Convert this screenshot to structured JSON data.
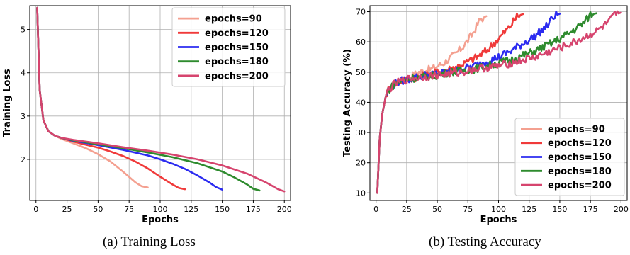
{
  "chart_data": [
    {
      "type": "line",
      "caption": "(a) Training Loss",
      "xlabel": "Epochs",
      "ylabel": "Training Loss",
      "xlim": [
        -5,
        205
      ],
      "ylim": [
        1.05,
        5.55
      ],
      "xticks": [
        0,
        25,
        50,
        75,
        100,
        125,
        150,
        175,
        200
      ],
      "yticks": [
        2,
        3,
        4,
        5
      ],
      "grid": true,
      "legend_position": "top-right",
      "series": [
        {
          "name": "epochs=90",
          "color": "#f4a090",
          "x": [
            1,
            3,
            6,
            10,
            15,
            20,
            30,
            40,
            50,
            60,
            70,
            80,
            85,
            90
          ],
          "y": [
            5.5,
            3.6,
            2.9,
            2.65,
            2.55,
            2.48,
            2.37,
            2.26,
            2.12,
            1.95,
            1.72,
            1.47,
            1.38,
            1.35
          ]
        },
        {
          "name": "epochs=120",
          "color": "#f03a3a",
          "x": [
            1,
            3,
            6,
            10,
            15,
            20,
            30,
            40,
            50,
            60,
            70,
            80,
            90,
            100,
            110,
            115,
            120
          ],
          "y": [
            5.5,
            3.6,
            2.9,
            2.65,
            2.55,
            2.5,
            2.41,
            2.34,
            2.27,
            2.18,
            2.08,
            1.95,
            1.79,
            1.6,
            1.42,
            1.34,
            1.31
          ]
        },
        {
          "name": "epochs=150",
          "color": "#2b2bf0",
          "x": [
            1,
            3,
            6,
            10,
            15,
            20,
            30,
            50,
            70,
            90,
            100,
            110,
            120,
            130,
            140,
            145,
            150
          ],
          "y": [
            5.5,
            3.6,
            2.9,
            2.65,
            2.55,
            2.5,
            2.43,
            2.33,
            2.22,
            2.09,
            2.0,
            1.9,
            1.78,
            1.63,
            1.46,
            1.36,
            1.3
          ]
        },
        {
          "name": "epochs=180",
          "color": "#2e8b2e",
          "x": [
            1,
            3,
            6,
            10,
            15,
            20,
            30,
            50,
            70,
            90,
            110,
            130,
            150,
            160,
            170,
            175,
            180
          ],
          "y": [
            5.5,
            3.6,
            2.9,
            2.65,
            2.55,
            2.5,
            2.44,
            2.35,
            2.26,
            2.16,
            2.05,
            1.91,
            1.72,
            1.58,
            1.42,
            1.32,
            1.28
          ]
        },
        {
          "name": "epochs=200",
          "color": "#d6446e",
          "x": [
            1,
            3,
            6,
            10,
            15,
            20,
            30,
            50,
            70,
            90,
            110,
            130,
            150,
            170,
            185,
            195,
            200
          ],
          "y": [
            5.5,
            3.6,
            2.9,
            2.65,
            2.55,
            2.5,
            2.45,
            2.37,
            2.28,
            2.2,
            2.11,
            2.0,
            1.86,
            1.67,
            1.47,
            1.31,
            1.26
          ]
        }
      ]
    },
    {
      "type": "line",
      "caption": "(b) Testing Accuracy",
      "xlabel": "Epochs",
      "ylabel": "Testing Accuracy (%)",
      "xlim": [
        -5,
        205
      ],
      "ylim": [
        7.5,
        72
      ],
      "xticks": [
        0,
        25,
        50,
        75,
        100,
        125,
        150,
        175,
        200
      ],
      "yticks": [
        10,
        20,
        30,
        40,
        50,
        60,
        70
      ],
      "grid": true,
      "legend_position": "bottom-right",
      "series": [
        {
          "name": "epochs=90",
          "color": "#f4a090",
          "x": [
            1,
            3,
            5,
            8,
            10,
            15,
            20,
            25,
            30,
            35,
            40,
            45,
            50,
            55,
            60,
            65,
            70,
            75,
            80,
            85,
            90
          ],
          "y": [
            10,
            28,
            36,
            42,
            44,
            46,
            47,
            48,
            49,
            50,
            50.5,
            51,
            52,
            53,
            54.5,
            56,
            58,
            60.5,
            63.5,
            67.5,
            68.5
          ]
        },
        {
          "name": "epochs=120",
          "color": "#f03a3a",
          "x": [
            1,
            3,
            5,
            8,
            10,
            15,
            20,
            30,
            40,
            50,
            60,
            70,
            80,
            90,
            100,
            110,
            115,
            120
          ],
          "y": [
            10,
            28,
            36,
            42,
            44,
            46,
            47,
            48,
            49,
            50,
            51,
            52.5,
            54.5,
            57,
            61,
            65.5,
            68.5,
            69.2
          ]
        },
        {
          "name": "epochs=150",
          "color": "#2b2bf0",
          "x": [
            1,
            3,
            5,
            8,
            10,
            15,
            20,
            30,
            40,
            50,
            60,
            70,
            80,
            90,
            100,
            110,
            120,
            130,
            140,
            145,
            150
          ],
          "y": [
            10,
            28,
            36,
            42,
            44,
            46,
            47,
            48,
            49,
            49.5,
            50,
            51,
            52,
            53.5,
            55,
            57,
            59.5,
            62,
            65.5,
            68.5,
            69.3
          ]
        },
        {
          "name": "epochs=180",
          "color": "#2e8b2e",
          "x": [
            1,
            3,
            5,
            8,
            10,
            15,
            20,
            30,
            40,
            50,
            60,
            70,
            80,
            90,
            100,
            110,
            120,
            130,
            140,
            150,
            160,
            170,
            175,
            180
          ],
          "y": [
            10,
            28,
            36,
            42,
            44,
            46,
            47,
            48,
            48.5,
            49,
            50,
            50.5,
            51,
            52,
            53,
            54,
            55.5,
            57,
            59,
            61,
            63.5,
            66.5,
            69,
            69.5
          ]
        },
        {
          "name": "epochs=200",
          "color": "#d6446e",
          "x": [
            1,
            3,
            5,
            8,
            10,
            15,
            20,
            30,
            40,
            50,
            60,
            70,
            80,
            90,
            100,
            110,
            120,
            130,
            140,
            150,
            160,
            170,
            180,
            190,
            195,
            200
          ],
          "y": [
            10,
            28,
            36,
            42,
            44,
            46,
            47,
            48,
            48.5,
            49,
            49.5,
            50,
            51,
            51.5,
            52,
            53,
            54,
            55,
            56.5,
            58,
            59.5,
            61.5,
            63.5,
            66.5,
            69,
            69.7
          ]
        }
      ]
    }
  ]
}
